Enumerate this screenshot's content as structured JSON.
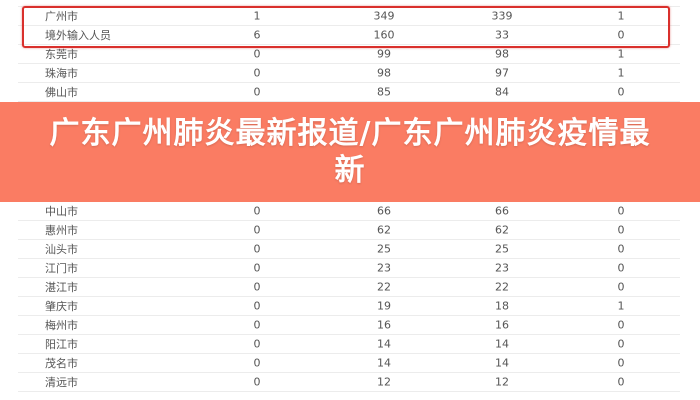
{
  "overlay": {
    "title": "广东广州肺炎最新报道/广东广州肺炎疫情最新"
  },
  "table": {
    "rows": [
      {
        "name": "",
        "v1": "",
        "v2": "",
        "v3": "",
        "v4": ""
      },
      {
        "name": "广州市",
        "v1": "1",
        "v2": "349",
        "v3": "339",
        "v4": "1"
      },
      {
        "name": "境外输入人员",
        "v1": "6",
        "v2": "160",
        "v3": "33",
        "v4": "0"
      },
      {
        "name": "东莞市",
        "v1": "0",
        "v2": "99",
        "v3": "98",
        "v4": "1"
      },
      {
        "name": "珠海市",
        "v1": "0",
        "v2": "98",
        "v3": "97",
        "v4": "1"
      },
      {
        "name": "佛山市",
        "v1": "0",
        "v2": "85",
        "v3": "84",
        "v4": "0"
      },
      {
        "name": "中山市",
        "v1": "0",
        "v2": "66",
        "v3": "66",
        "v4": "0"
      },
      {
        "name": "惠州市",
        "v1": "0",
        "v2": "62",
        "v3": "62",
        "v4": "0"
      },
      {
        "name": "汕头市",
        "v1": "0",
        "v2": "25",
        "v3": "25",
        "v4": "0"
      },
      {
        "name": "江门市",
        "v1": "0",
        "v2": "23",
        "v3": "23",
        "v4": "0"
      },
      {
        "name": "湛江市",
        "v1": "0",
        "v2": "22",
        "v3": "22",
        "v4": "0"
      },
      {
        "name": "肇庆市",
        "v1": "0",
        "v2": "19",
        "v3": "18",
        "v4": "1"
      },
      {
        "name": "梅州市",
        "v1": "0",
        "v2": "16",
        "v3": "16",
        "v4": "0"
      },
      {
        "name": "阳江市",
        "v1": "0",
        "v2": "14",
        "v3": "14",
        "v4": "0"
      },
      {
        "name": "茂名市",
        "v1": "0",
        "v2": "14",
        "v3": "14",
        "v4": "0"
      },
      {
        "name": "清远市",
        "v1": "0",
        "v2": "12",
        "v3": "12",
        "v4": "0"
      }
    ]
  },
  "colors": {
    "highlight_border": "#d9302c",
    "banner": "#fa6e55"
  }
}
